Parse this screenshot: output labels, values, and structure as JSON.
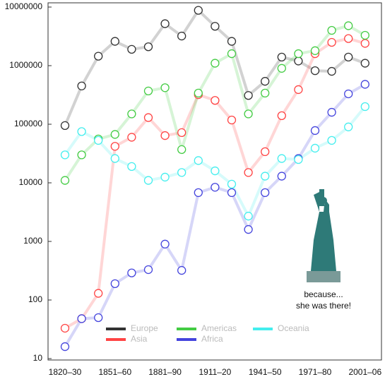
{
  "chart_data": {
    "type": "line",
    "log_scale": true,
    "categories": [
      "1820–30",
      null,
      null,
      "1851–60",
      null,
      null,
      "1881–90",
      null,
      null,
      "1911–20",
      null,
      null,
      "1941–50",
      null,
      null,
      "1971–80",
      null,
      null,
      "2001–06"
    ],
    "ylim": [
      10,
      10000000
    ],
    "yticks": [
      10,
      100,
      1000,
      10000,
      100000,
      1000000,
      10000000
    ],
    "series": [
      {
        "name": "Europe",
        "color": "#333333",
        "values": [
          95000,
          450000,
          1450000,
          2600000,
          1900000,
          2100000,
          5200000,
          3200000,
          8800000,
          4700000,
          2600000,
          310000,
          540000,
          1400000,
          1200000,
          820000,
          800000,
          1400000,
          1100000
        ]
      },
      {
        "name": "Asia",
        "color": "#ff4444",
        "values": [
          33,
          48,
          130,
          42000,
          60000,
          130000,
          64000,
          72000,
          320000,
          255000,
          118000,
          15000,
          34000,
          140000,
          390000,
          1600000,
          2500000,
          2900000,
          2400000
        ]
      },
      {
        "name": "Americas",
        "color": "#44cc44",
        "values": [
          11000,
          30000,
          56000,
          67000,
          150000,
          370000,
          420000,
          37000,
          340000,
          1100000,
          1600000,
          150000,
          340000,
          900000,
          1600000,
          1800000,
          4000000,
          4800000,
          3300000
        ]
      },
      {
        "name": "Africa",
        "color": "#4444dd",
        "values": [
          16,
          48,
          50,
          190,
          290,
          330,
          900,
          320,
          6800,
          8400,
          6800,
          1600,
          6800,
          13000,
          26000,
          78000,
          160000,
          330000,
          480000
        ]
      },
      {
        "name": "Oceania",
        "color": "#44eeee",
        "values": [
          30000,
          75000,
          53000,
          26000,
          19000,
          11000,
          12500,
          15000,
          24000,
          16000,
          9500,
          2700,
          13000,
          26000,
          25000,
          39000,
          53000,
          90000,
          200000
        ]
      }
    ],
    "annotation": [
      "because...",
      "she was there!"
    ]
  }
}
